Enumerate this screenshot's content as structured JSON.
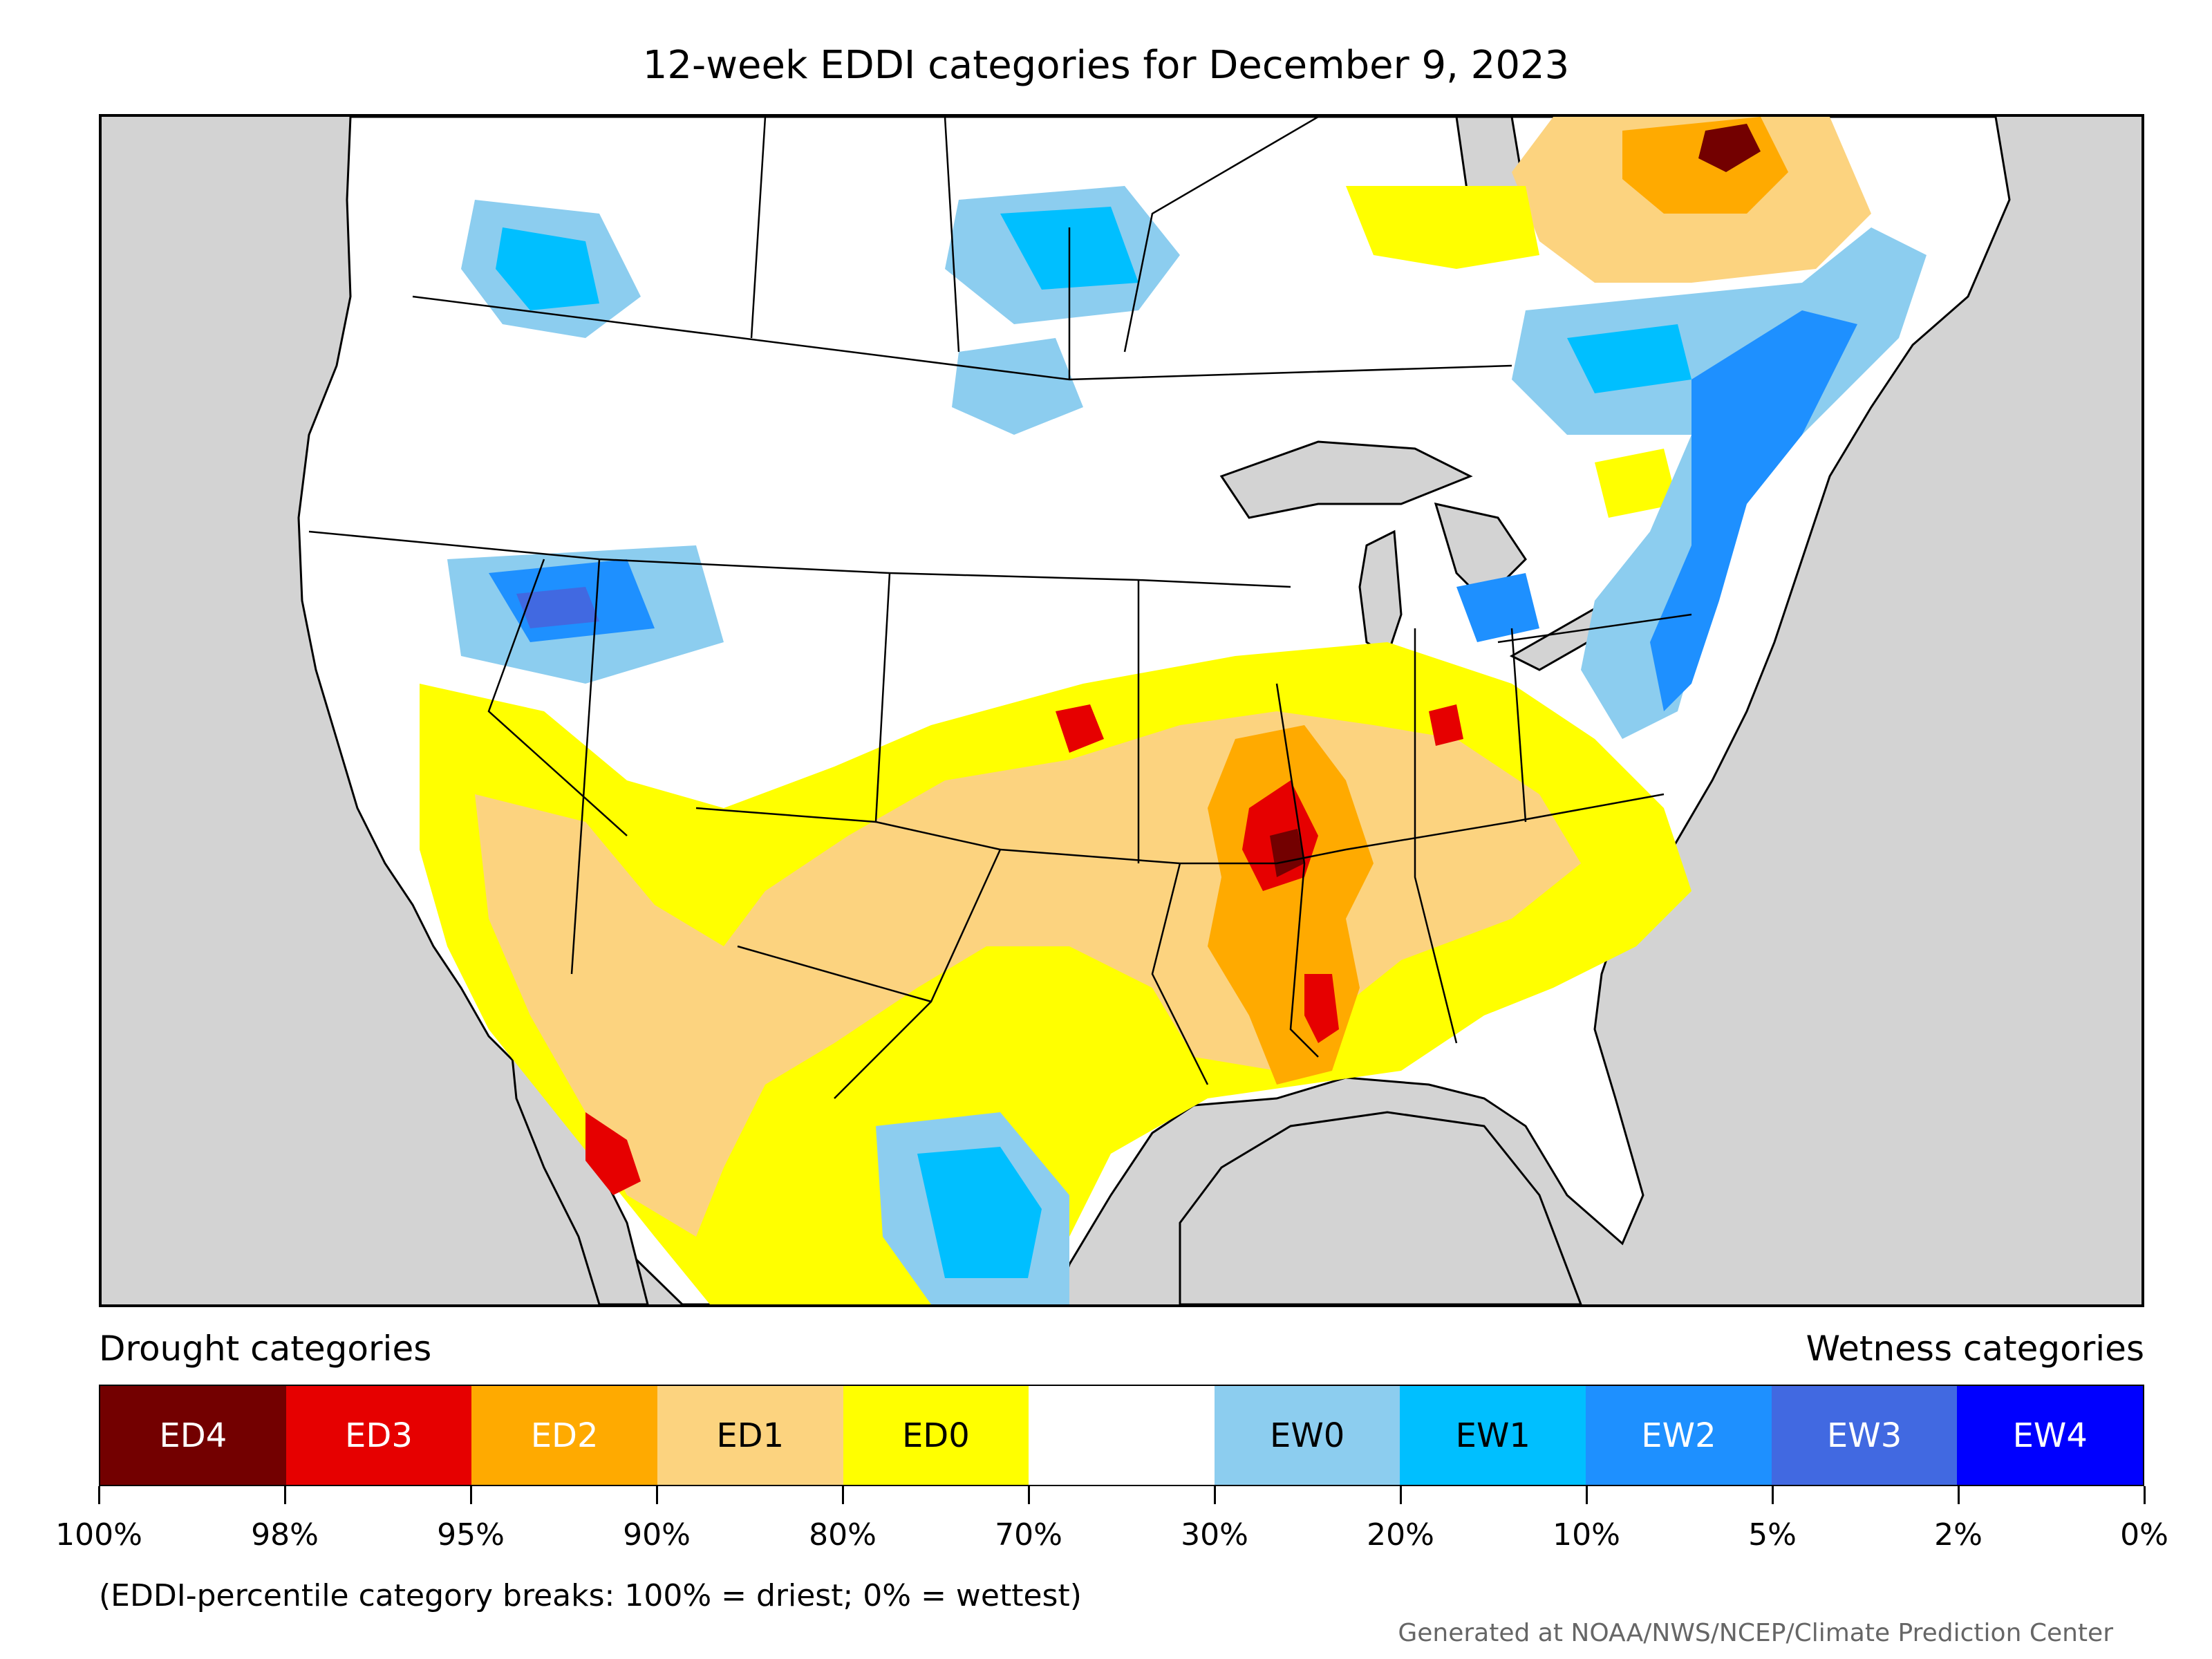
{
  "title": "12-week EDDI categories for December 9, 2023",
  "legend": {
    "drought_heading": "Drought categories",
    "wetness_heading": "Wetness categories",
    "categories": [
      {
        "label": "ED4",
        "color": "#730000",
        "text_color": "#ffffff"
      },
      {
        "label": "ED3",
        "color": "#e60000",
        "text_color": "#ffffff"
      },
      {
        "label": "ED2",
        "color": "#ffaa00",
        "text_color": "#ffffff"
      },
      {
        "label": "ED1",
        "color": "#fcd37f",
        "text_color": "#000000"
      },
      {
        "label": "ED0",
        "color": "#ffff00",
        "text_color": "#000000"
      },
      {
        "label": "",
        "color": "#ffffff",
        "text_color": "#000000"
      },
      {
        "label": "EW0",
        "color": "#8ccdef",
        "text_color": "#000000"
      },
      {
        "label": "EW1",
        "color": "#00bfff",
        "text_color": "#000000"
      },
      {
        "label": "EW2",
        "color": "#1e90ff",
        "text_color": "#ffffff"
      },
      {
        "label": "EW3",
        "color": "#4169e1",
        "text_color": "#ffffff"
      },
      {
        "label": "EW4",
        "color": "#0000ff",
        "text_color": "#ffffff"
      }
    ],
    "tick_labels": [
      "100%",
      "98%",
      "95%",
      "90%",
      "80%",
      "70%",
      "30%",
      "20%",
      "10%",
      "5%",
      "2%",
      "0%"
    ]
  },
  "note": "(EDDI-percentile category breaks: 100% = driest; 0% = wettest)",
  "credit": "Generated at NOAA/NWS/NCEP/Climate Prediction Center",
  "colors": {
    "ocean": "#d3d3d3",
    "land": "#ffffff"
  }
}
